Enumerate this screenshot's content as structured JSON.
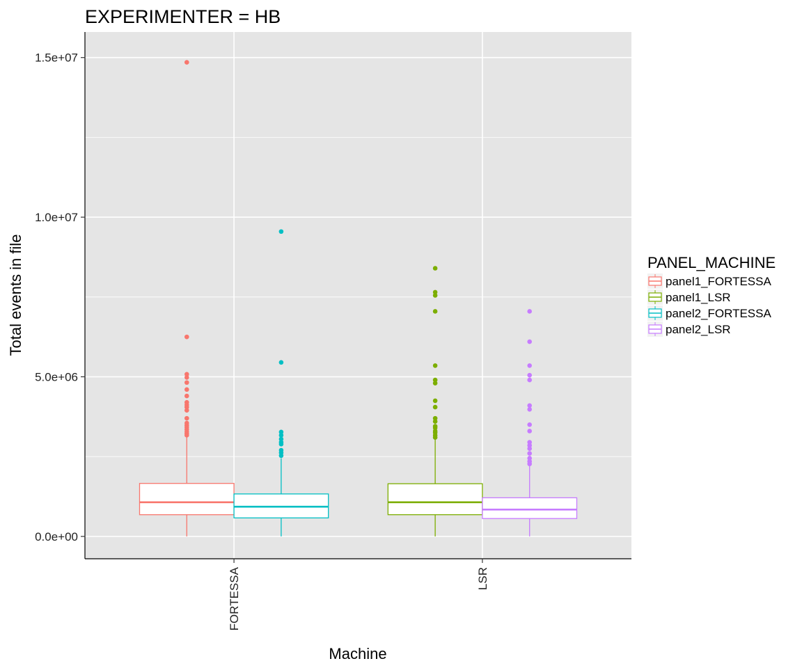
{
  "chart_data": {
    "type": "boxplot",
    "title": "EXPERIMENTER = HB",
    "xlabel": "Machine",
    "ylabel": "Total events in file",
    "ylim": [
      -700000,
      15800000
    ],
    "y_ticks": [
      0,
      5000000,
      10000000,
      15000000
    ],
    "y_tick_labels": [
      "0.0e+00",
      "5.0e+06",
      "1.0e+07",
      "1.5e+07"
    ],
    "categories": [
      "FORTESSA",
      "LSR"
    ],
    "legend_title": "PANEL_MACHINE",
    "legend_position": "right",
    "grid": true,
    "series": [
      {
        "name": "panel1_FORTESSA",
        "color": "#F8766D",
        "category": "FORTESSA",
        "min": 0,
        "q1": 680000,
        "median": 1070000,
        "q3": 1660000,
        "whisker_high": 3150000,
        "outliers": [
          14850000,
          6250000,
          5080000,
          4980000,
          4820000,
          4600000,
          4400000,
          4200000,
          4120000,
          4050000,
          3950000,
          3700000,
          3550000,
          3480000,
          3420000,
          3350000,
          3280000,
          3220000,
          3170000
        ]
      },
      {
        "name": "panel2_FORTESSA",
        "color": "#00BFC4",
        "category": "FORTESSA",
        "min": 0,
        "q1": 580000,
        "median": 930000,
        "q3": 1330000,
        "whisker_high": 2450000,
        "outliers": [
          9550000,
          5450000,
          3270000,
          3170000,
          3050000,
          2950000,
          2890000,
          2700000,
          2620000,
          2530000
        ]
      },
      {
        "name": "panel1_LSR",
        "color": "#7CAE00",
        "category": "LSR",
        "min": 0,
        "q1": 680000,
        "median": 1070000,
        "q3": 1650000,
        "whisker_high": 3050000,
        "outliers": [
          8400000,
          7650000,
          7550000,
          7050000,
          5350000,
          4900000,
          4800000,
          4250000,
          4050000,
          3700000,
          3600000,
          3450000,
          3400000,
          3300000,
          3250000,
          3170000,
          3100000
        ]
      },
      {
        "name": "panel2_LSR",
        "color": "#C77CFF",
        "category": "LSR",
        "min": 0,
        "q1": 560000,
        "median": 840000,
        "q3": 1210000,
        "whisker_high": 2200000,
        "outliers": [
          7050000,
          6100000,
          5350000,
          5050000,
          4900000,
          4100000,
          3980000,
          3500000,
          3300000,
          2950000,
          2850000,
          2750000,
          2600000,
          2450000,
          2350000,
          2270000
        ]
      }
    ]
  }
}
